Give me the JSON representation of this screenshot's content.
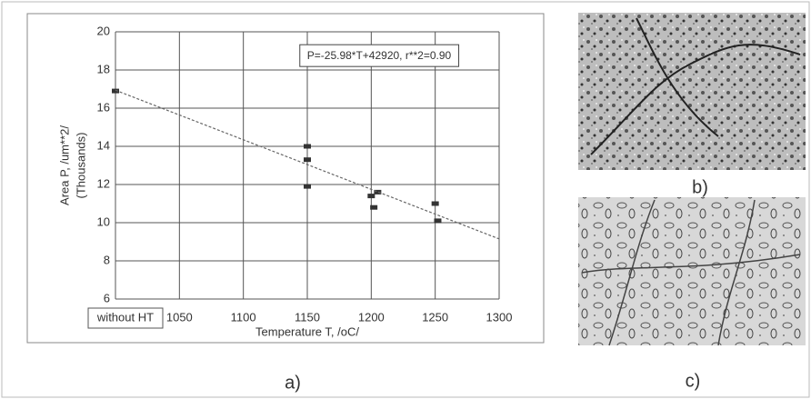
{
  "chart_data": {
    "type": "scatter",
    "annotation": "P=-25.98*T+42920, r**2=0.90",
    "x_label": "Temperature T, /oC/",
    "y_label": [
      "Area P, /um**2/",
      "(Thousands)"
    ],
    "series": [
      {
        "x": [
          1000,
          1150,
          1150,
          1150,
          1200,
          1205,
          1202,
          1250,
          1252
        ],
        "values": [
          16.9,
          14.0,
          13.3,
          11.9,
          11.4,
          11.6,
          10.8,
          11.0,
          10.1
        ],
        "color": "#333333"
      },
      {
        "x": [
          1000,
          1300
        ],
        "values": [
          16.94,
          9.15
        ],
        "color": "#666666",
        "style": "dashed"
      }
    ],
    "xlim": [
      1000,
      1300
    ],
    "xticks": [
      {
        "value": 1000,
        "label": "without HT"
      },
      1050,
      1100,
      1150,
      1200,
      1250,
      1300
    ],
    "ylim": [
      6,
      20
    ],
    "yticks": [
      6,
      8,
      10,
      12,
      14,
      16,
      18,
      20
    ],
    "grid": true
  },
  "panels": {
    "a": "a)",
    "b": "b)",
    "c": "c)"
  }
}
